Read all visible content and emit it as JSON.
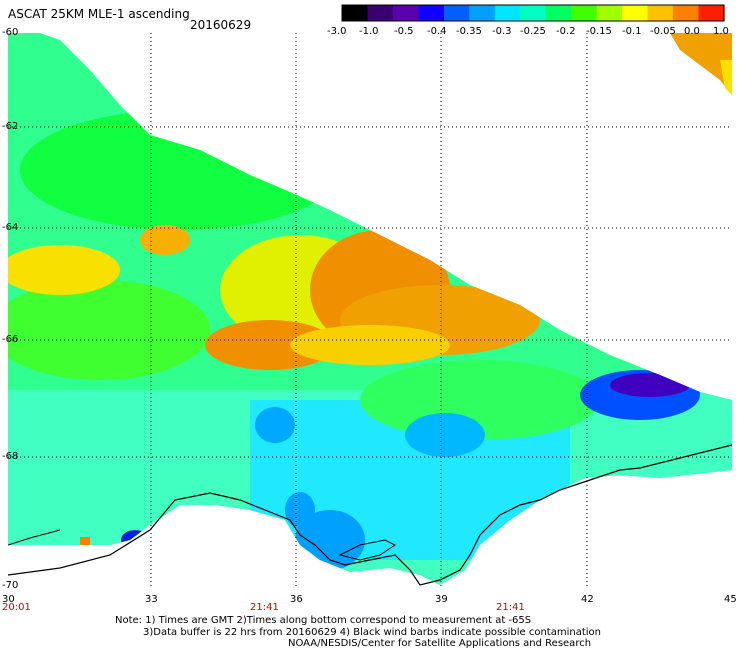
{
  "header": {
    "title": "ASCAT 25KM MLE-1 ascending",
    "date": "20160629"
  },
  "colorbar": {
    "labels": [
      "-3.0",
      "-1.0",
      "-0.5",
      "-0.4",
      "-0.35",
      "-0.3",
      "-0.25",
      "-0.2",
      "-0.15",
      "-0.1",
      "-0.05",
      "0.0",
      "1.0"
    ],
    "colors": [
      "#000000",
      "#3a0070",
      "#5a00b0",
      "#1000ff",
      "#0060ff",
      "#00a0ff",
      "#00e6ff",
      "#00ffc0",
      "#00ff60",
      "#40ff00",
      "#a0ff00",
      "#ffff00",
      "#ffc000",
      "#ff8000",
      "#ff2000"
    ]
  },
  "axes": {
    "y_labels": [
      "-60",
      "-62",
      "-64",
      "-66",
      "-68",
      "-70"
    ],
    "x_labels": [
      "30",
      "33",
      "36",
      "39",
      "42",
      "45"
    ],
    "time_labels": [
      "20:01",
      "21:41",
      "21:41"
    ]
  },
  "footer": {
    "line1": "Note: 1) Times are GMT 2)Times along bottom correspond to measurement at -65S",
    "line2": "3)Data buffer is 22 hrs from 20160629 4) Black wind barbs indicate possible contamination",
    "line3": "NOAA/NESDIS/Center for Satellite Applications and Research"
  }
}
